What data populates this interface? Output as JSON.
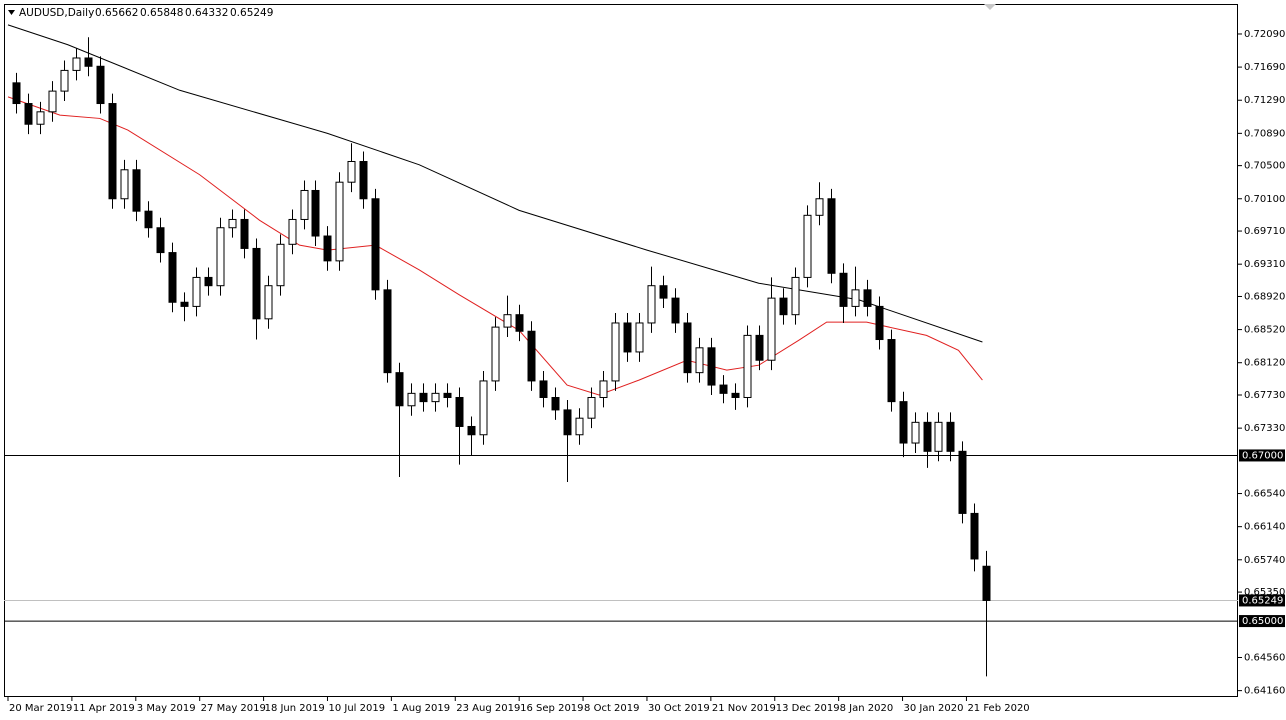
{
  "chart_data": {
    "type": "candlestick",
    "symbol": "AUDUSD,Daily",
    "header_ohlc": [
      0.65662,
      0.65848,
      0.64332,
      0.65249
    ],
    "xlim": [
      -1,
      308
    ],
    "ylim": [
      0.64083,
      0.72452
    ],
    "xticks": [
      {
        "value": 0,
        "label": "20 Mar 2019"
      },
      {
        "value": 16,
        "label": "11 Apr 2019"
      },
      {
        "value": 32,
        "label": "3 May 2019"
      },
      {
        "value": 48,
        "label": "27 May 2019"
      },
      {
        "value": 64,
        "label": "18 Jun 2019"
      },
      {
        "value": 80,
        "label": "10 Jul 2019"
      },
      {
        "value": 96,
        "label": "1 Aug 2019"
      },
      {
        "value": 112,
        "label": "23 Aug 2019"
      },
      {
        "value": 128,
        "label": "16 Sep 2019"
      },
      {
        "value": 144,
        "label": "8 Oct 2019"
      },
      {
        "value": 160,
        "label": "30 Oct 2019"
      },
      {
        "value": 176,
        "label": "21 Nov 2019"
      },
      {
        "value": 192,
        "label": "13 Dec 2019"
      },
      {
        "value": 208,
        "label": "8 Jan 2020"
      },
      {
        "value": 224,
        "label": "30 Jan 2020"
      },
      {
        "value": 240,
        "label": "21 Feb 2020"
      }
    ],
    "yticks": [
      {
        "value": 0.7209,
        "label": "0.72090"
      },
      {
        "value": 0.7169,
        "label": "0.71690"
      },
      {
        "value": 0.7129,
        "label": "0.71290"
      },
      {
        "value": 0.7089,
        "label": "0.70890"
      },
      {
        "value": 0.705,
        "label": "0.70500"
      },
      {
        "value": 0.701,
        "label": "0.70100"
      },
      {
        "value": 0.6971,
        "label": "0.69710"
      },
      {
        "value": 0.6931,
        "label": "0.69310"
      },
      {
        "value": 0.6892,
        "label": "0.68920"
      },
      {
        "value": 0.6852,
        "label": "0.68520"
      },
      {
        "value": 0.6812,
        "label": "0.68120"
      },
      {
        "value": 0.6773,
        "label": "0.67730"
      },
      {
        "value": 0.6733,
        "label": "0.67330"
      },
      {
        "value": 0.6654,
        "label": "0.66540"
      },
      {
        "value": 0.6614,
        "label": "0.66140"
      },
      {
        "value": 0.6574,
        "label": "0.65740"
      },
      {
        "value": 0.6535,
        "label": "0.65350"
      },
      {
        "value": 0.6456,
        "label": "0.64560"
      },
      {
        "value": 0.6416,
        "label": "0.64160"
      }
    ],
    "hlines": [
      {
        "value": 0.67,
        "label": "0.67000"
      },
      {
        "value": 0.65,
        "label": "0.65000"
      }
    ],
    "last_price": 0.65249,
    "candle_color": "#000000",
    "x": [
      2,
      5,
      8,
      11,
      14,
      17,
      20,
      23,
      26,
      29,
      32,
      35,
      38,
      41,
      44,
      47,
      50,
      53,
      56,
      59,
      62,
      65,
      68,
      71,
      74,
      77,
      80,
      83,
      86,
      89,
      92,
      95,
      98,
      101,
      104,
      107,
      110,
      113,
      116,
      119,
      122,
      125,
      128,
      131,
      134,
      137,
      140,
      143,
      146,
      149,
      152,
      155,
      158,
      161,
      164,
      167,
      170,
      173,
      176,
      179,
      182,
      185,
      188,
      191,
      194,
      197,
      200,
      203,
      206,
      209,
      212,
      215,
      218,
      221,
      224,
      227,
      230,
      233,
      236,
      239,
      242,
      245
    ],
    "open": [
      0.715,
      0.7125,
      0.71,
      0.7115,
      0.714,
      0.7165,
      0.718,
      0.717,
      0.7125,
      0.701,
      0.7045,
      0.6995,
      0.6975,
      0.6945,
      0.6885,
      0.688,
      0.6915,
      0.6905,
      0.6975,
      0.6985,
      0.695,
      0.6865,
      0.6905,
      0.6955,
      0.6985,
      0.702,
      0.6965,
      0.6935,
      0.703,
      0.7055,
      0.701,
      0.69,
      0.68,
      0.676,
      0.6775,
      0.6765,
      0.6775,
      0.677,
      0.6735,
      0.6725,
      0.679,
      0.6855,
      0.687,
      0.685,
      0.679,
      0.677,
      0.6755,
      0.6725,
      0.6745,
      0.677,
      0.679,
      0.686,
      0.6825,
      0.686,
      0.6905,
      0.689,
      0.686,
      0.68,
      0.683,
      0.6785,
      0.6775,
      0.677,
      0.6845,
      0.6815,
      0.689,
      0.687,
      0.6915,
      0.699,
      0.701,
      0.692,
      0.688,
      0.69,
      0.688,
      0.684,
      0.6765,
      0.6715,
      0.674,
      0.6705,
      0.674,
      0.6705,
      0.663,
      0.65662
    ],
    "high": [
      0.7162,
      0.7137,
      0.7127,
      0.7152,
      0.7177,
      0.7192,
      0.7205,
      0.7182,
      0.7137,
      0.7057,
      0.7057,
      0.7007,
      0.6987,
      0.6957,
      0.6897,
      0.6927,
      0.6927,
      0.6987,
      0.6997,
      0.6997,
      0.6962,
      0.6917,
      0.6967,
      0.6997,
      0.7032,
      0.7032,
      0.6977,
      0.7042,
      0.7077,
      0.7067,
      0.7022,
      0.6912,
      0.6812,
      0.6787,
      0.6787,
      0.6787,
      0.6787,
      0.6782,
      0.6747,
      0.6802,
      0.6867,
      0.6893,
      0.6882,
      0.6862,
      0.6802,
      0.6782,
      0.6767,
      0.6757,
      0.6782,
      0.6802,
      0.6872,
      0.6872,
      0.6872,
      0.6928,
      0.6917,
      0.6902,
      0.6872,
      0.6842,
      0.6842,
      0.6797,
      0.6787,
      0.6857,
      0.6857,
      0.6915,
      0.6902,
      0.6927,
      0.7002,
      0.703,
      0.7022,
      0.6932,
      0.6928,
      0.6912,
      0.6892,
      0.6852,
      0.6777,
      0.6752,
      0.6752,
      0.6752,
      0.6752,
      0.6717,
      0.6642,
      0.65848
    ],
    "low": [
      0.7113,
      0.7088,
      0.7088,
      0.7103,
      0.7128,
      0.7153,
      0.7158,
      0.7113,
      0.6998,
      0.6998,
      0.6983,
      0.6963,
      0.6933,
      0.6873,
      0.6862,
      0.6868,
      0.6893,
      0.6893,
      0.6963,
      0.6938,
      0.684,
      0.6853,
      0.6893,
      0.6943,
      0.6973,
      0.6953,
      0.6923,
      0.6923,
      0.7018,
      0.6998,
      0.6888,
      0.6788,
      0.6674,
      0.6748,
      0.6753,
      0.6753,
      0.6758,
      0.6689,
      0.67,
      0.6713,
      0.6778,
      0.6843,
      0.6838,
      0.6778,
      0.6758,
      0.6743,
      0.6668,
      0.6713,
      0.6733,
      0.6758,
      0.6778,
      0.6813,
      0.6813,
      0.6848,
      0.6878,
      0.6848,
      0.6788,
      0.6788,
      0.6773,
      0.6763,
      0.6755,
      0.6758,
      0.6803,
      0.6803,
      0.6858,
      0.6858,
      0.6903,
      0.6978,
      0.6908,
      0.686,
      0.6868,
      0.6868,
      0.6828,
      0.6753,
      0.6698,
      0.6703,
      0.6685,
      0.6693,
      0.6693,
      0.6618,
      0.656,
      0.64332
    ],
    "close": [
      0.7125,
      0.71,
      0.7115,
      0.714,
      0.7165,
      0.718,
      0.717,
      0.7125,
      0.701,
      0.7045,
      0.6995,
      0.6975,
      0.6945,
      0.6885,
      0.688,
      0.6915,
      0.6905,
      0.6975,
      0.6985,
      0.695,
      0.6865,
      0.6905,
      0.6955,
      0.6985,
      0.702,
      0.6965,
      0.6935,
      0.703,
      0.7055,
      0.701,
      0.69,
      0.68,
      0.676,
      0.6775,
      0.6765,
      0.6775,
      0.677,
      0.6735,
      0.6725,
      0.679,
      0.6855,
      0.687,
      0.685,
      0.679,
      0.677,
      0.6755,
      0.6725,
      0.6745,
      0.677,
      0.679,
      0.686,
      0.6825,
      0.686,
      0.6905,
      0.689,
      0.686,
      0.68,
      0.683,
      0.6785,
      0.6775,
      0.677,
      0.6845,
      0.6815,
      0.689,
      0.687,
      0.6915,
      0.699,
      0.701,
      0.692,
      0.688,
      0.69,
      0.688,
      0.684,
      0.6765,
      0.6715,
      0.674,
      0.6705,
      0.674,
      0.6705,
      0.663,
      0.6575,
      0.65249
    ],
    "series": [
      {
        "color": "#000000",
        "x": [
          0,
          15,
          43,
          80,
          103,
          128,
          160,
          188,
          213,
          244
        ],
        "values": [
          0.722,
          0.7196,
          0.7141,
          0.7089,
          0.7051,
          0.6996,
          0.6948,
          0.6908,
          0.6888,
          0.6837
        ]
      },
      {
        "color": "#e02020",
        "x": [
          0,
          13,
          23,
          30,
          48,
          63,
          73,
          80,
          92,
          103,
          113,
          128,
          140,
          148,
          158,
          170,
          180,
          188,
          198,
          205,
          215,
          230,
          238,
          244
        ],
        "values": [
          0.7133,
          0.7111,
          0.7107,
          0.7093,
          0.7039,
          0.6984,
          0.6954,
          0.6948,
          0.6954,
          0.6924,
          0.6894,
          0.6851,
          0.6785,
          0.6773,
          0.6791,
          0.6815,
          0.6803,
          0.6809,
          0.6839,
          0.6861,
          0.6861,
          0.6845,
          0.6827,
          0.6791
        ]
      }
    ]
  }
}
